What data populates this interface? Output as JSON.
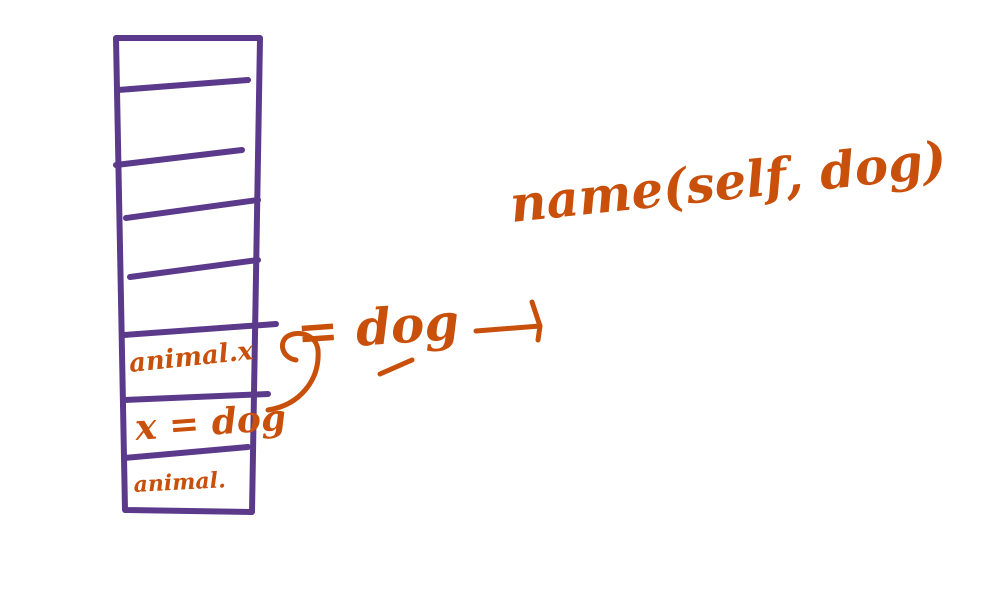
{
  "stack": {
    "frames": [
      {
        "label": ""
      },
      {
        "label": ""
      },
      {
        "label": ""
      },
      {
        "label": ""
      },
      {
        "label": ""
      },
      {
        "label": "animal.x"
      },
      {
        "label": "x = dog"
      },
      {
        "label": "animal."
      }
    ]
  },
  "annotations": {
    "assignment": "= dog",
    "call": "name(self, dog)"
  },
  "colors": {
    "stack_ink": "#5b3a8c",
    "annotation_ink": "#c8500a"
  }
}
